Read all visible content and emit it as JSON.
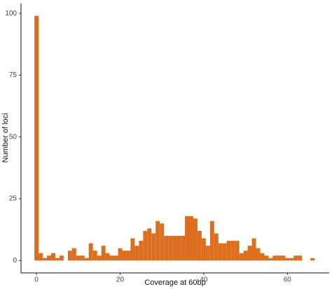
{
  "chart_data": {
    "type": "histogram",
    "x_label": "Coverage at 60bp",
    "y_label": "Number of loci",
    "color": "#dc6f1f",
    "bins": [
      -0.5,
      0.5,
      1.5,
      2.5,
      3.5,
      4.5,
      5.5,
      6.5,
      7.5,
      8.5,
      9.5,
      10.5,
      11.5,
      12.5,
      13.5,
      14.5,
      15.5,
      16.5,
      17.5,
      18.5,
      19.5,
      20.5,
      21.5,
      22.5,
      23.5,
      24.5,
      25.5,
      26.5,
      27.5,
      28.5,
      29.5,
      30.5,
      31.5,
      32.5,
      33.5,
      34.5,
      35.5,
      36.5,
      37.5,
      38.5,
      39.5,
      40.5,
      41.5,
      42.5,
      43.5,
      44.5,
      45.5,
      46.5,
      47.5,
      48.5,
      49.5,
      50.5,
      51.5,
      52.5,
      53.5,
      54.5,
      55.5,
      56.5,
      57.5,
      58.5,
      59.5,
      60.5,
      61.5,
      62.5,
      63.5,
      64.5,
      65.5,
      66.5
    ],
    "values": [
      99,
      3,
      1,
      2,
      3,
      1,
      2,
      0,
      4,
      5,
      2,
      2,
      1,
      7,
      4,
      2,
      6,
      3,
      2,
      2,
      5,
      4,
      4,
      9,
      6,
      8,
      12,
      13,
      11,
      16,
      15,
      10,
      10,
      10,
      10,
      10,
      18,
      18,
      17,
      12,
      9,
      6,
      16,
      11,
      7,
      7,
      8,
      8,
      8,
      3,
      4,
      6,
      9,
      5,
      3,
      2,
      1,
      2,
      2,
      2,
      1,
      1,
      2,
      2,
      0,
      0,
      1
    ],
    "xlim": [
      -3.7,
      70
    ],
    "xticks": [
      0,
      20,
      40,
      60
    ],
    "ylim": [
      -5,
      104
    ],
    "yticks": [
      0,
      25,
      50,
      75,
      100
    ],
    "grid": false
  }
}
